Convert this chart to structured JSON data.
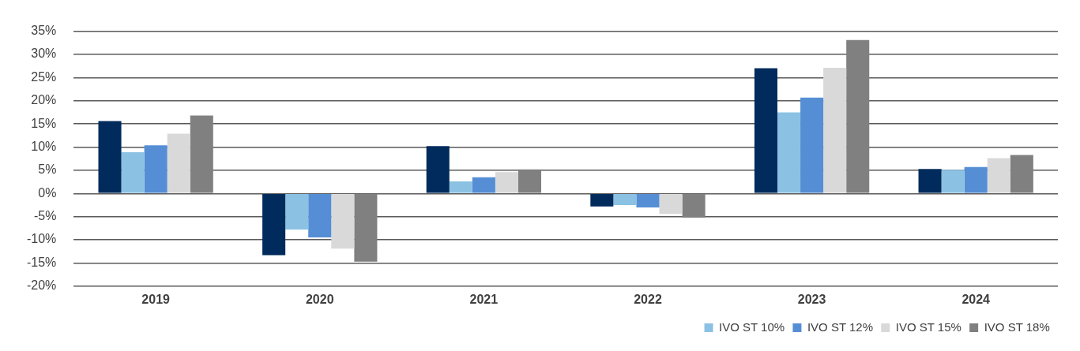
{
  "chart_data": {
    "type": "bar",
    "categories": [
      "2019",
      "2020",
      "2021",
      "2022",
      "2023",
      "2024"
    ],
    "series": [
      {
        "color": "#002b5c",
        "values": [
          15.6,
          -13.3,
          10.2,
          -2.8,
          27.0,
          5.3
        ]
      },
      {
        "name": "IVO ST 10%",
        "color": "#8bc1e3",
        "values": [
          8.9,
          -7.8,
          2.6,
          -2.5,
          17.5,
          5.1
        ]
      },
      {
        "name": "IVO ST 12%",
        "color": "#558ed5",
        "values": [
          10.4,
          -9.5,
          3.5,
          -3.0,
          20.7,
          5.7
        ]
      },
      {
        "name": "IVO ST 15%",
        "color": "#d9d9d9",
        "values": [
          12.9,
          -11.9,
          4.6,
          -4.4,
          27.1,
          7.6
        ]
      },
      {
        "name": "IVO ST 18%",
        "color": "#808080",
        "values": [
          16.8,
          -14.7,
          5.2,
          -5.2,
          33.1,
          8.3
        ]
      }
    ],
    "ylim": [
      -20,
      35
    ],
    "yticks": [
      {
        "value": -20,
        "label": "-20%"
      },
      {
        "value": -15,
        "label": "-15%"
      },
      {
        "value": -10,
        "label": "-10%"
      },
      {
        "value": -5,
        "label": "-5%"
      },
      {
        "value": 0,
        "label": "0%"
      },
      {
        "value": 5,
        "label": "5%"
      },
      {
        "value": 10,
        "label": "10%"
      },
      {
        "value": 15,
        "label": "15%"
      },
      {
        "value": 20,
        "label": "20%"
      },
      {
        "value": 25,
        "label": "25%"
      },
      {
        "value": 30,
        "label": "30%"
      },
      {
        "value": 35,
        "label": "35%"
      }
    ],
    "grid": "y",
    "legend": "bottom right"
  }
}
